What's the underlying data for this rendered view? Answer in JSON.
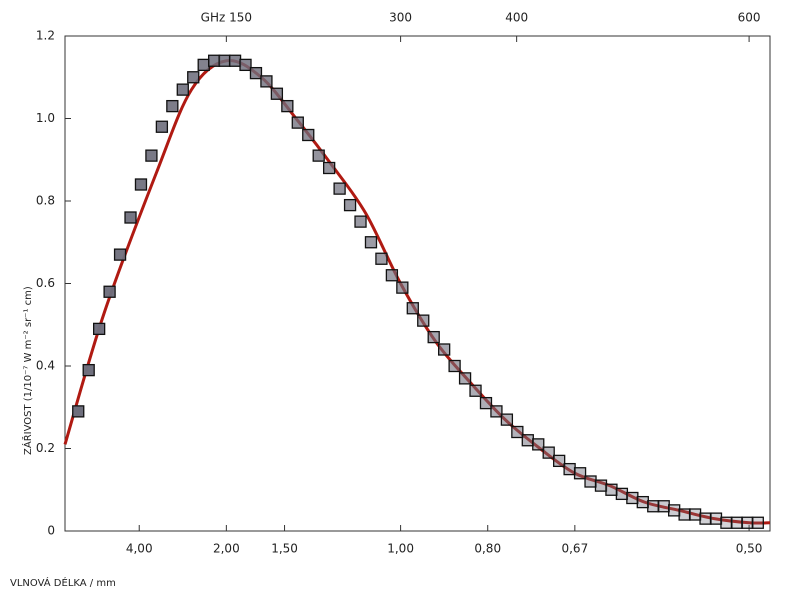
{
  "chart_data": {
    "type": "scatter",
    "x_label": "VLNOVÁ DÉLKA / mm",
    "y_label": "ZÁŘIVOST (1/10⁻⁷ W m⁻² sr⁻¹ cm)",
    "xlim": [
      0.37,
      20.6
    ],
    "ylim": [
      0,
      1.2
    ],
    "yticks": [
      0,
      0.2,
      0.4,
      0.6,
      0.8,
      {
        "value": 1,
        "label": "1.0"
      },
      1.2
    ],
    "xticks": [
      {
        "value": 2.5,
        "label": "4,00"
      },
      {
        "value": 5,
        "label": "2,00"
      },
      {
        "value": 6.67,
        "label": "1,50"
      },
      {
        "value": 10,
        "label": "1,00"
      },
      {
        "value": 12.5,
        "label": "0,80"
      },
      {
        "value": 15,
        "label": "0,67"
      },
      {
        "value": 20,
        "label": "0,50"
      }
    ],
    "x2ticks": [
      {
        "value": 5,
        "label": "GHz 150"
      },
      {
        "value": 10,
        "label": "300"
      },
      {
        "value": 13.33,
        "label": "400"
      },
      {
        "value": 20,
        "label": "600"
      }
    ],
    "series": [
      {
        "color": "#6e6e7c",
        "x": [
          0.75,
          1.05,
          1.35,
          1.65,
          1.95,
          2.25,
          2.55,
          2.85,
          3.15,
          3.45,
          3.75,
          4.05,
          4.35,
          4.65,
          4.95,
          5.25,
          5.55,
          5.85,
          6.15,
          6.45,
          6.75,
          7.05,
          7.35,
          7.65,
          7.95,
          8.25,
          8.55,
          8.85,
          9.15,
          9.45,
          9.75,
          10.05,
          10.35,
          10.65,
          10.95,
          11.25,
          11.55,
          11.85,
          12.15,
          12.45,
          12.75,
          13.05,
          13.35,
          13.65,
          13.95,
          14.25,
          14.55,
          14.85,
          15.15,
          15.45,
          15.75,
          16.05,
          16.35,
          16.65,
          16.95,
          17.25,
          17.55,
          17.85,
          18.15,
          18.45,
          18.75,
          19.05,
          19.35,
          19.65,
          19.95,
          20.25
        ],
        "values": [
          0.29,
          0.39,
          0.49,
          0.58,
          0.67,
          0.76,
          0.84,
          0.91,
          0.98,
          1.03,
          1.07,
          1.1,
          1.13,
          1.14,
          1.14,
          1.14,
          1.13,
          1.11,
          1.09,
          1.06,
          1.03,
          0.99,
          0.96,
          0.91,
          0.88,
          0.83,
          0.79,
          0.75,
          0.7,
          0.66,
          0.62,
          0.59,
          0.54,
          0.51,
          0.47,
          0.44,
          0.4,
          0.37,
          0.34,
          0.31,
          0.29,
          0.27,
          0.24,
          0.22,
          0.21,
          0.19,
          0.17,
          0.15,
          0.14,
          0.12,
          0.11,
          0.1,
          0.09,
          0.08,
          0.07,
          0.06,
          0.06,
          0.05,
          0.04,
          0.04,
          0.03,
          0.03,
          0.02,
          0.02,
          0.02,
          0.02
        ]
      },
      {
        "color": "#b01a12",
        "x": [
          0.37,
          1.5,
          3,
          4,
          5,
          6,
          7,
          8,
          9,
          10,
          11,
          12,
          13,
          14,
          15,
          16,
          17,
          18,
          19,
          20,
          20.6
        ],
        "values": [
          0.21,
          0.53,
          0.87,
          1.07,
          1.14,
          1.1,
          1.0,
          0.89,
          0.77,
          0.6,
          0.46,
          0.36,
          0.27,
          0.2,
          0.14,
          0.11,
          0.07,
          0.05,
          0.03,
          0.02,
          0.02
        ]
      }
    ]
  }
}
